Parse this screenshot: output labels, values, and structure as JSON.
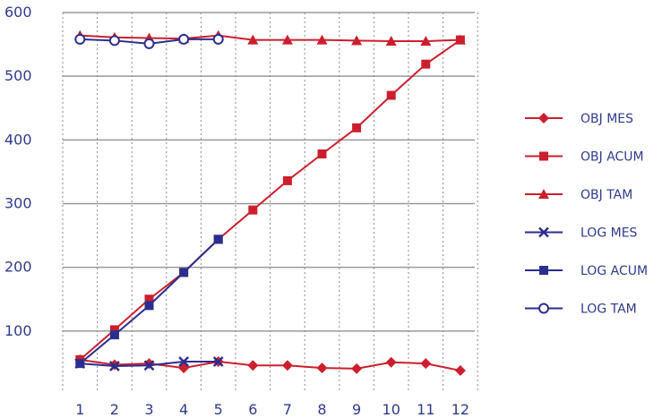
{
  "chart_data": {
    "type": "line",
    "categories": [
      "1",
      "2",
      "3",
      "4",
      "5",
      "6",
      "7",
      "8",
      "9",
      "10",
      "11",
      "12"
    ],
    "y_ticks": [
      "600",
      "500",
      "400",
      "300",
      "200",
      "100"
    ],
    "ylim": [
      0,
      600
    ],
    "grid": true,
    "legend_position": "right",
    "series": [
      {
        "name": "OBJ MES",
        "color": "#cc1f2d",
        "marker": "diamond",
        "values": [
          55,
          47,
          49,
          42,
          52,
          46,
          46,
          42,
          41,
          51,
          49,
          38
        ]
      },
      {
        "name": "OBJ ACUM",
        "color": "#cc1f2d",
        "marker": "square",
        "values": [
          55,
          102,
          150,
          192,
          244,
          290,
          336,
          378,
          419,
          470,
          519,
          557
        ]
      },
      {
        "name": "OBJ TAM",
        "color": "#cc1f2d",
        "marker": "triangle",
        "values": [
          564,
          561,
          560,
          559,
          564,
          557,
          557,
          557,
          556,
          555,
          555,
          557
        ]
      },
      {
        "name": "LOG MES",
        "color": "#2b2e8e",
        "marker": "x",
        "values": [
          49,
          45,
          46,
          52,
          52,
          null,
          null,
          null,
          null,
          null,
          null,
          null
        ]
      },
      {
        "name": "LOG ACUM",
        "color": "#2b2e8e",
        "marker": "square",
        "values": [
          49,
          94,
          140,
          192,
          244,
          null,
          null,
          null,
          null,
          null,
          null,
          null
        ]
      },
      {
        "name": "LOG TAM",
        "color": "#2b2e8e",
        "marker": "circle",
        "values": [
          558,
          556,
          551,
          558,
          558,
          null,
          null,
          null,
          null,
          null,
          null,
          null
        ]
      }
    ]
  }
}
